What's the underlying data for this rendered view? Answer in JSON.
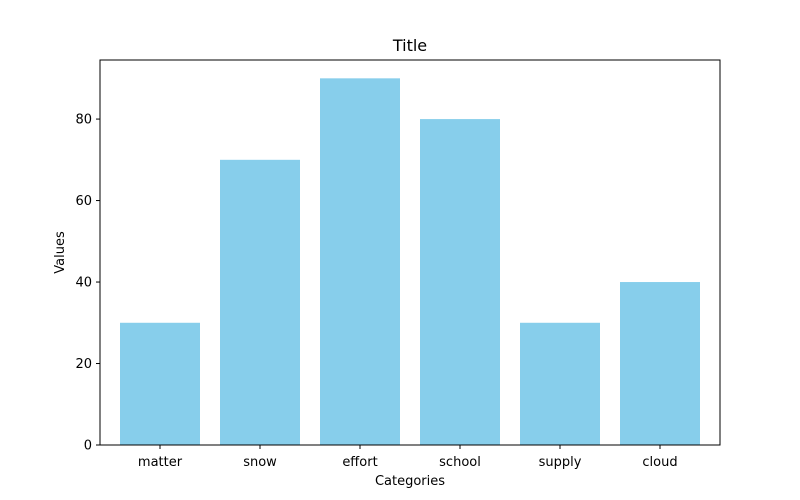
{
  "chart_data": {
    "type": "bar",
    "title": "Title",
    "xlabel": "Categories",
    "ylabel": "Values",
    "categories": [
      "matter",
      "snow",
      "effort",
      "school",
      "supply",
      "cloud"
    ],
    "values": [
      30,
      70,
      90,
      80,
      30,
      40
    ],
    "ylim": [
      0,
      94.5
    ],
    "yticks": [
      0,
      20,
      40,
      60,
      80
    ],
    "bar_color": "#87CEEB",
    "grid": false,
    "legend": "none"
  }
}
